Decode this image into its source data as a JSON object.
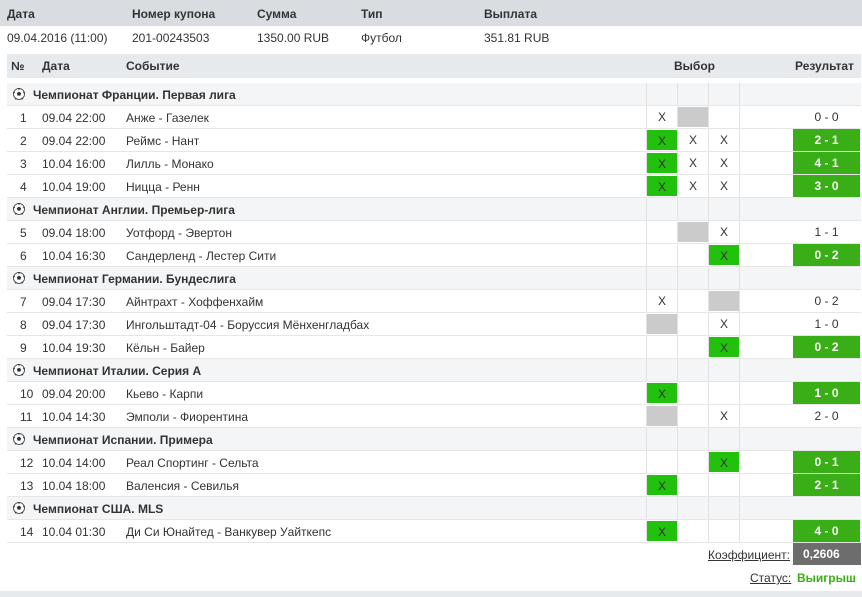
{
  "coupon_header": {
    "date": "Дата",
    "coupon_number": "Номер купона",
    "sum": "Сумма",
    "type": "Тип",
    "payout": "Выплата"
  },
  "coupon": {
    "date": "09.04.2016 (11:00)",
    "coupon_number": "201-00243503",
    "sum": "1350.00 RUB",
    "type": "Футбол",
    "payout": "351.81 RUB"
  },
  "events_header": {
    "num": "№",
    "date": "Дата",
    "event": "Событие",
    "choice": "Выбор",
    "result": "Результат"
  },
  "leagues": [
    {
      "name": "Чемпионат Франции. Первая лига",
      "events": [
        {
          "num": "1",
          "date": "09.04 22:00",
          "event": "Анже - Газелек",
          "picks": [
            {
              "mark": "X",
              "state": "plain"
            },
            {
              "mark": "",
              "state": "gray"
            },
            {
              "mark": "",
              "state": "plain"
            }
          ],
          "result": "0 - 0",
          "won": false
        },
        {
          "num": "2",
          "date": "09.04 22:00",
          "event": "Реймс - Нант",
          "picks": [
            {
              "mark": "X",
              "state": "win"
            },
            {
              "mark": "X",
              "state": "plain"
            },
            {
              "mark": "X",
              "state": "plain"
            }
          ],
          "result": "2 - 1",
          "won": true
        },
        {
          "num": "3",
          "date": "10.04 16:00",
          "event": "Лилль - Монако",
          "picks": [
            {
              "mark": "X",
              "state": "win"
            },
            {
              "mark": "X",
              "state": "plain"
            },
            {
              "mark": "X",
              "state": "plain"
            }
          ],
          "result": "4 - 1",
          "won": true
        },
        {
          "num": "4",
          "date": "10.04 19:00",
          "event": "Ницца - Ренн",
          "picks": [
            {
              "mark": "X",
              "state": "win"
            },
            {
              "mark": "X",
              "state": "plain"
            },
            {
              "mark": "X",
              "state": "plain"
            }
          ],
          "result": "3 - 0",
          "won": true
        }
      ]
    },
    {
      "name": "Чемпионат Англии. Премьер-лига",
      "events": [
        {
          "num": "5",
          "date": "09.04 18:00",
          "event": "Уотфорд - Эвертон",
          "picks": [
            {
              "mark": "",
              "state": "plain"
            },
            {
              "mark": "",
              "state": "gray"
            },
            {
              "mark": "X",
              "state": "plain"
            }
          ],
          "result": "1 - 1",
          "won": false
        },
        {
          "num": "6",
          "date": "10.04 16:30",
          "event": "Сандерленд - Лестер Сити",
          "picks": [
            {
              "mark": "",
              "state": "plain"
            },
            {
              "mark": "",
              "state": "plain"
            },
            {
              "mark": "X",
              "state": "win"
            }
          ],
          "result": "0 - 2",
          "won": true
        }
      ]
    },
    {
      "name": "Чемпионат Германии. Бундеслига",
      "events": [
        {
          "num": "7",
          "date": "09.04 17:30",
          "event": "Айнтрахт - Хоффенхайм",
          "picks": [
            {
              "mark": "X",
              "state": "plain"
            },
            {
              "mark": "",
              "state": "plain"
            },
            {
              "mark": "",
              "state": "gray"
            }
          ],
          "result": "0 - 2",
          "won": false
        },
        {
          "num": "8",
          "date": "09.04 17:30",
          "event": "Ингольштадт-04 - Боруссия Мёнхенгладбах",
          "picks": [
            {
              "mark": "",
              "state": "gray"
            },
            {
              "mark": "",
              "state": "plain"
            },
            {
              "mark": "X",
              "state": "plain"
            }
          ],
          "result": "1 - 0",
          "won": false
        },
        {
          "num": "9",
          "date": "10.04 19:30",
          "event": "Кёльн - Байер",
          "picks": [
            {
              "mark": "",
              "state": "plain"
            },
            {
              "mark": "",
              "state": "plain"
            },
            {
              "mark": "X",
              "state": "win"
            }
          ],
          "result": "0 - 2",
          "won": true
        }
      ]
    },
    {
      "name": "Чемпионат Италии. Серия А",
      "events": [
        {
          "num": "10",
          "date": "09.04 20:00",
          "event": "Кьево - Карпи",
          "picks": [
            {
              "mark": "X",
              "state": "win"
            },
            {
              "mark": "",
              "state": "plain"
            },
            {
              "mark": "",
              "state": "plain"
            }
          ],
          "result": "1 - 0",
          "won": true
        },
        {
          "num": "11",
          "date": "10.04 14:30",
          "event": "Эмполи - Фиорентина",
          "picks": [
            {
              "mark": "",
              "state": "gray"
            },
            {
              "mark": "",
              "state": "plain"
            },
            {
              "mark": "X",
              "state": "plain"
            }
          ],
          "result": "2 - 0",
          "won": false
        }
      ]
    },
    {
      "name": "Чемпионат Испании. Примера",
      "events": [
        {
          "num": "12",
          "date": "10.04 14:00",
          "event": "Реал Спортинг - Сельта",
          "picks": [
            {
              "mark": "",
              "state": "plain"
            },
            {
              "mark": "",
              "state": "plain"
            },
            {
              "mark": "X",
              "state": "win"
            }
          ],
          "result": "0 - 1",
          "won": true
        },
        {
          "num": "13",
          "date": "10.04 18:00",
          "event": "Валенсия - Севилья",
          "picks": [
            {
              "mark": "X",
              "state": "win"
            },
            {
              "mark": "",
              "state": "plain"
            },
            {
              "mark": "",
              "state": "plain"
            }
          ],
          "result": "2 - 1",
          "won": true
        }
      ]
    },
    {
      "name": "Чемпионат США. MLS",
      "events": [
        {
          "num": "14",
          "date": "10.04 01:30",
          "event": "Ди Си Юнайтед - Ванкувер Уайткепс",
          "picks": [
            {
              "mark": "X",
              "state": "win"
            },
            {
              "mark": "",
              "state": "plain"
            },
            {
              "mark": "",
              "state": "plain"
            }
          ],
          "result": "4 - 0",
          "won": true
        }
      ]
    }
  ],
  "footer": {
    "coefficient_label": "Коэффициент:",
    "coefficient_value": "0,2606",
    "status_label": "Статус:",
    "status_value": "Выигрыш"
  },
  "colors": {
    "win_cell": "#22c10d",
    "win_result": "#3aae16",
    "gray_cell": "#cbcbcb",
    "header_bg": "#d9dde1"
  }
}
